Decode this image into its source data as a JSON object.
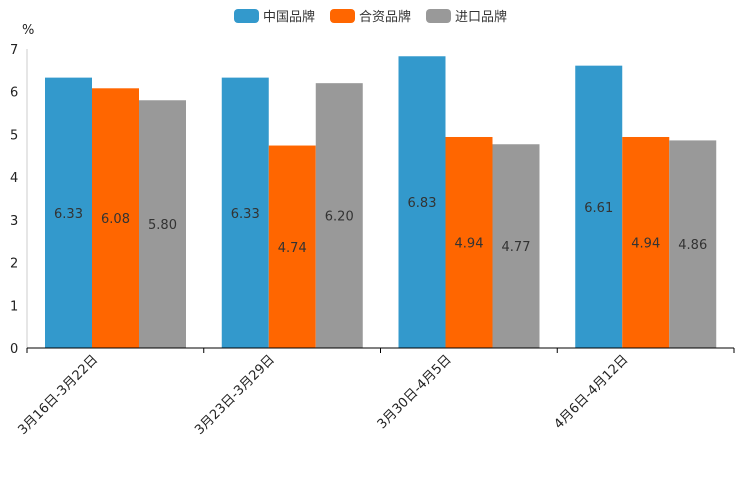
{
  "chart_data": {
    "type": "bar",
    "ylabel": "%",
    "ylim": [
      0,
      7
    ],
    "yticks": [
      0,
      1,
      2,
      3,
      4,
      5,
      6,
      7
    ],
    "categories": [
      "3月16日-3月22日",
      "3月23日-3月29日",
      "3月30日-4月5日",
      "4月6日-4月12日"
    ],
    "series": [
      {
        "name": "中国品牌",
        "color": "#3399CC",
        "values": [
          6.33,
          6.33,
          6.83,
          6.61
        ],
        "labels": [
          "6.33",
          "6.33",
          "6.83",
          "6.61"
        ]
      },
      {
        "name": "合资品牌",
        "color": "#FF6600",
        "values": [
          6.08,
          4.74,
          4.94,
          4.94
        ],
        "labels": [
          "6.08",
          "4.74",
          "4.94",
          "4.94"
        ]
      },
      {
        "name": "进口品牌",
        "color": "#999999",
        "values": [
          5.8,
          6.2,
          4.77,
          4.86
        ],
        "labels": [
          "5.80",
          "6.20",
          "4.77",
          "4.86"
        ]
      }
    ],
    "legend": "top-center",
    "grid": false
  }
}
